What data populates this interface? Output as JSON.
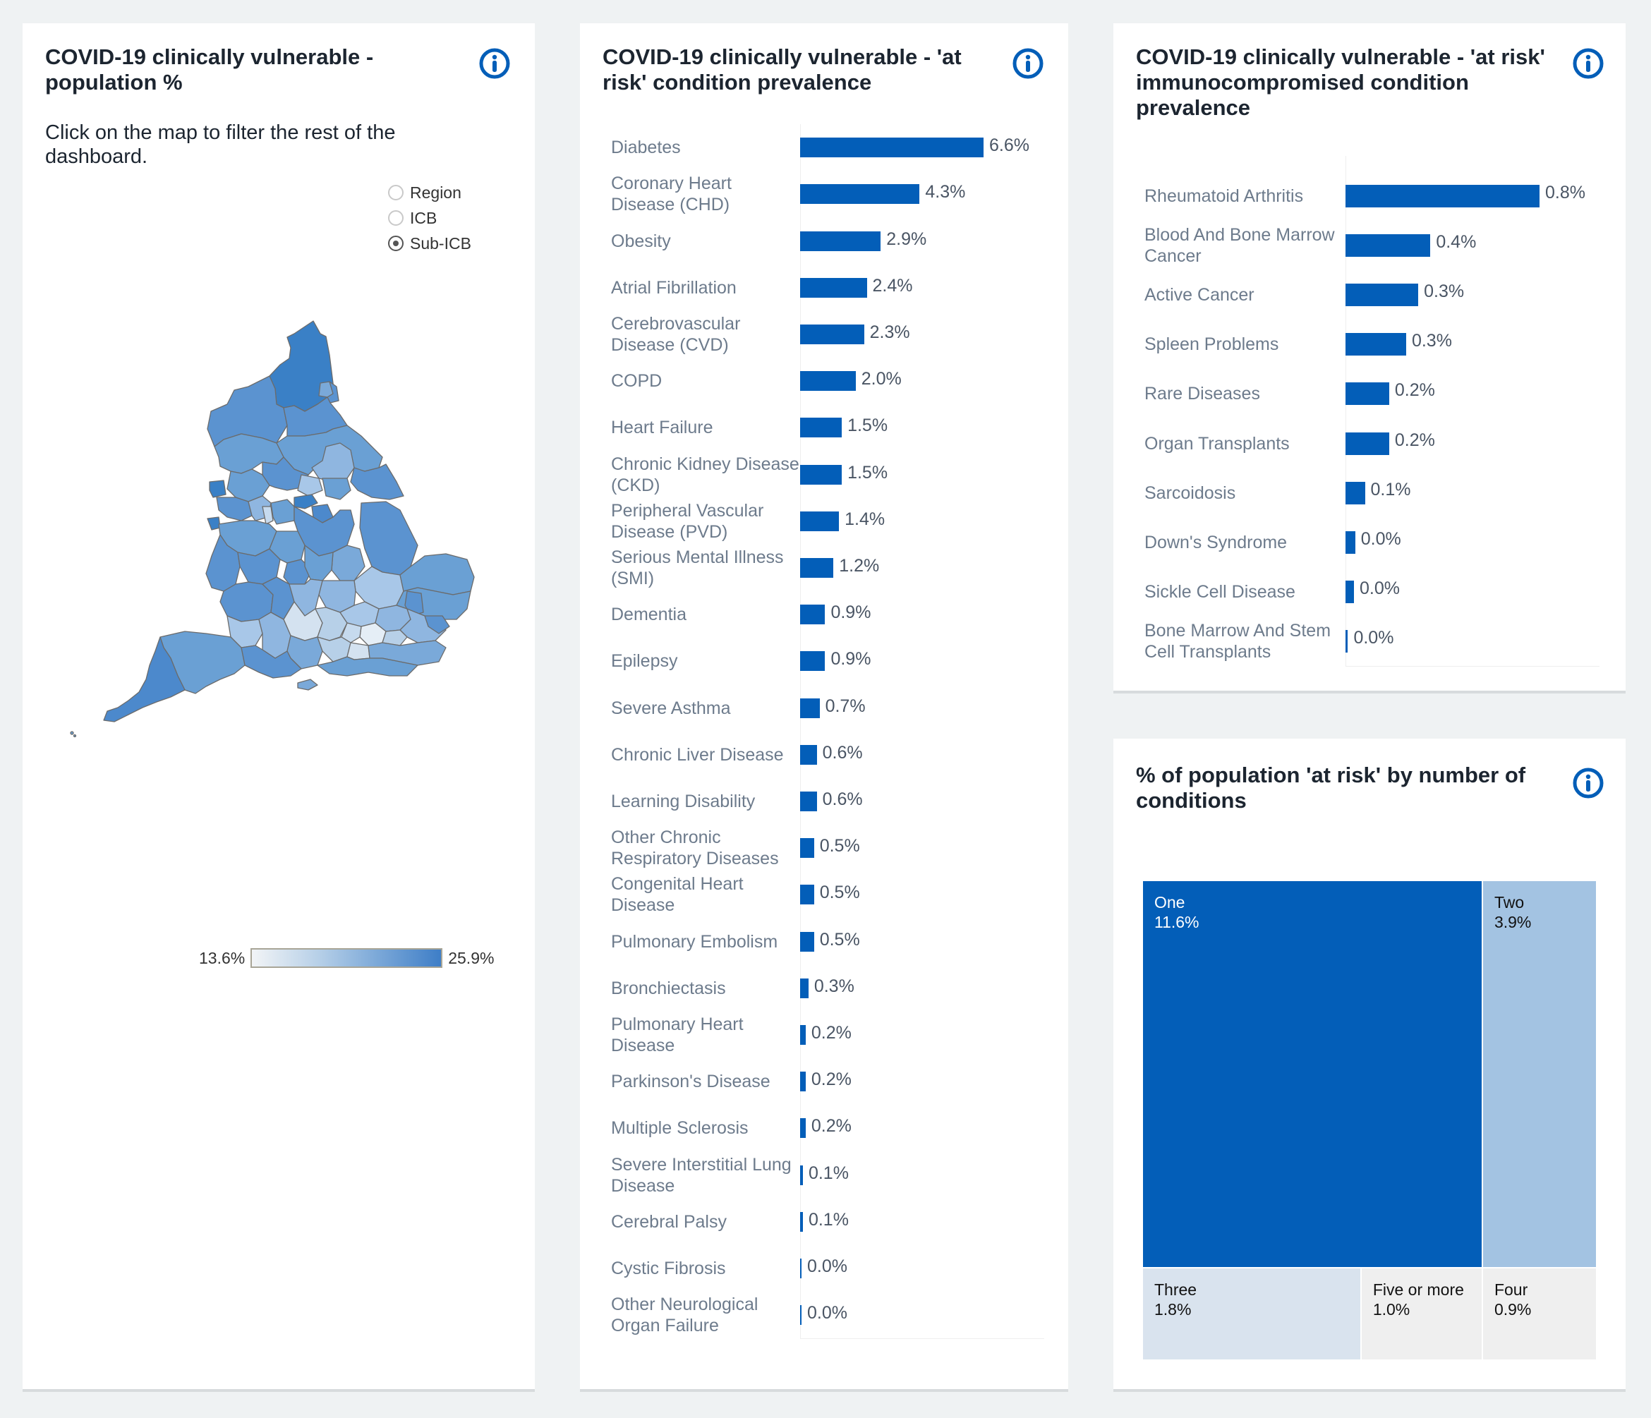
{
  "colors": {
    "bar": "#035eb8",
    "info_icon": "#035eb8",
    "treemap": {
      "One": "#035eb8",
      "Two": "#a3c3e2",
      "Three": "#d9e3ee",
      "Five or more": "#efefef",
      "Four": "#efefef"
    },
    "treemap_text": {
      "One": "#ffffff",
      "Two": "#111111",
      "Three": "#111111",
      "Five or more": "#111111",
      "Four": "#111111"
    },
    "map_scale": [
      "#f2f4f6",
      "#b7d0e8",
      "#7eaad9",
      "#3e7ec7"
    ]
  },
  "map_panel": {
    "title": "COVID-19 clinically vulnerable - population %",
    "instruction": "Click on the map to filter the rest of the dashboard.",
    "level_options": [
      {
        "label": "Region",
        "selected": false
      },
      {
        "label": "ICB",
        "selected": false
      },
      {
        "label": "Sub-ICB",
        "selected": true
      }
    ],
    "legend": {
      "min_label": "13.6%",
      "max_label": "25.9%"
    },
    "info_icon": "info-circle-icon"
  },
  "chart_data": [
    {
      "type": "bar",
      "orientation": "horizontal",
      "title": "COVID-19 clinically vulnerable - 'at risk' condition prevalence",
      "xlabel": "",
      "ylabel": "",
      "categories": [
        "Diabetes",
        "Coronary Heart Disease (CHD)",
        "Obesity",
        "Atrial Fibrillation",
        "Cerebrovascular Disease (CVD)",
        "COPD",
        "Heart Failure",
        "Chronic Kidney Disease (CKD)",
        "Peripheral Vascular Disease (PVD)",
        "Serious Mental Illness (SMI)",
        "Dementia",
        "Epilepsy",
        "Severe Asthma",
        "Chronic Liver Disease",
        "Learning Disability",
        "Other Chronic Respiratory Diseases",
        "Congenital Heart Disease",
        "Pulmonary Embolism",
        "Bronchiectasis",
        "Pulmonary Heart Disease",
        "Parkinson's Disease",
        "Multiple Sclerosis",
        "Severe Interstitial Lung Disease",
        "Cerebral Palsy",
        "Cystic Fibrosis",
        "Other Neurological Organ Failure"
      ],
      "values": [
        6.6,
        4.3,
        2.9,
        2.4,
        2.3,
        2.0,
        1.5,
        1.5,
        1.4,
        1.2,
        0.9,
        0.9,
        0.7,
        0.6,
        0.6,
        0.5,
        0.5,
        0.5,
        0.3,
        0.2,
        0.2,
        0.2,
        0.1,
        0.1,
        0.04,
        0.04
      ],
      "value_labels": [
        "6.6%",
        "4.3%",
        "2.9%",
        "2.4%",
        "2.3%",
        "2.0%",
        "1.5%",
        "1.5%",
        "1.4%",
        "1.2%",
        "0.9%",
        "0.9%",
        "0.7%",
        "0.6%",
        "0.6%",
        "0.5%",
        "0.5%",
        "0.5%",
        "0.3%",
        "0.2%",
        "0.2%",
        "0.2%",
        "0.1%",
        "0.1%",
        "0.0%",
        "0.0%"
      ],
      "xlim": [
        0,
        6.6
      ],
      "grid": false,
      "legend": "none"
    },
    {
      "type": "bar",
      "orientation": "horizontal",
      "title": "COVID-19 clinically vulnerable - 'at risk' immunocompromised condition prevalence",
      "xlabel": "",
      "ylabel": "",
      "categories": [
        "Rheumatoid Arthritis",
        "Blood And Bone Marrow Cancer",
        "Active Cancer",
        "Spleen Problems",
        "Rare Diseases",
        "Organ Transplants",
        "Sarcoidosis",
        "Down's Syndrome",
        "Sickle Cell Disease",
        "Bone Marrow And Stem Cell Transplants"
      ],
      "values": [
        0.8,
        0.35,
        0.3,
        0.25,
        0.18,
        0.18,
        0.08,
        0.04,
        0.035,
        0.01
      ],
      "value_labels": [
        "0.8%",
        "0.4%",
        "0.3%",
        "0.3%",
        "0.2%",
        "0.2%",
        "0.1%",
        "0.0%",
        "0.0%",
        "0.0%"
      ],
      "xlim": [
        0,
        0.8
      ],
      "grid": false,
      "legend": "none"
    },
    {
      "type": "treemap",
      "title": "% of population 'at risk' by number of conditions",
      "categories": [
        "One",
        "Two",
        "Three",
        "Five or more",
        "Four"
      ],
      "values": [
        11.6,
        3.9,
        1.8,
        1.0,
        0.9
      ],
      "value_labels": [
        "11.6%",
        "3.9%",
        "1.8%",
        "1.0%",
        "0.9%"
      ]
    }
  ]
}
